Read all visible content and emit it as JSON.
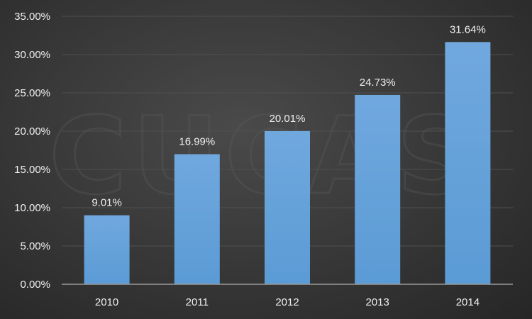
{
  "chart_data": {
    "type": "bar",
    "categories": [
      "2010",
      "2011",
      "2012",
      "2013",
      "2014"
    ],
    "values": [
      9.01,
      16.99,
      20.01,
      24.73,
      31.64
    ],
    "value_labels": [
      "9.01%",
      "16.99%",
      "20.01%",
      "24.73%",
      "31.64%"
    ],
    "y_ticks": [
      0,
      5,
      10,
      15,
      20,
      25,
      30,
      35
    ],
    "y_tick_labels": [
      "0.00%",
      "5.00%",
      "10.00%",
      "15.00%",
      "20.00%",
      "25.00%",
      "30.00%",
      "35.00%"
    ],
    "ylim": [
      0,
      35
    ],
    "title": "",
    "xlabel": "",
    "ylabel": "",
    "grid": true,
    "legend": "none",
    "bar_color": "#5b9bd5",
    "bar_color_top": "#70a8de",
    "background_color": "#3a3a3a",
    "text_color": "#f0f0f0",
    "grid_color": "#4f4f4f",
    "watermark": "CUCAS"
  }
}
